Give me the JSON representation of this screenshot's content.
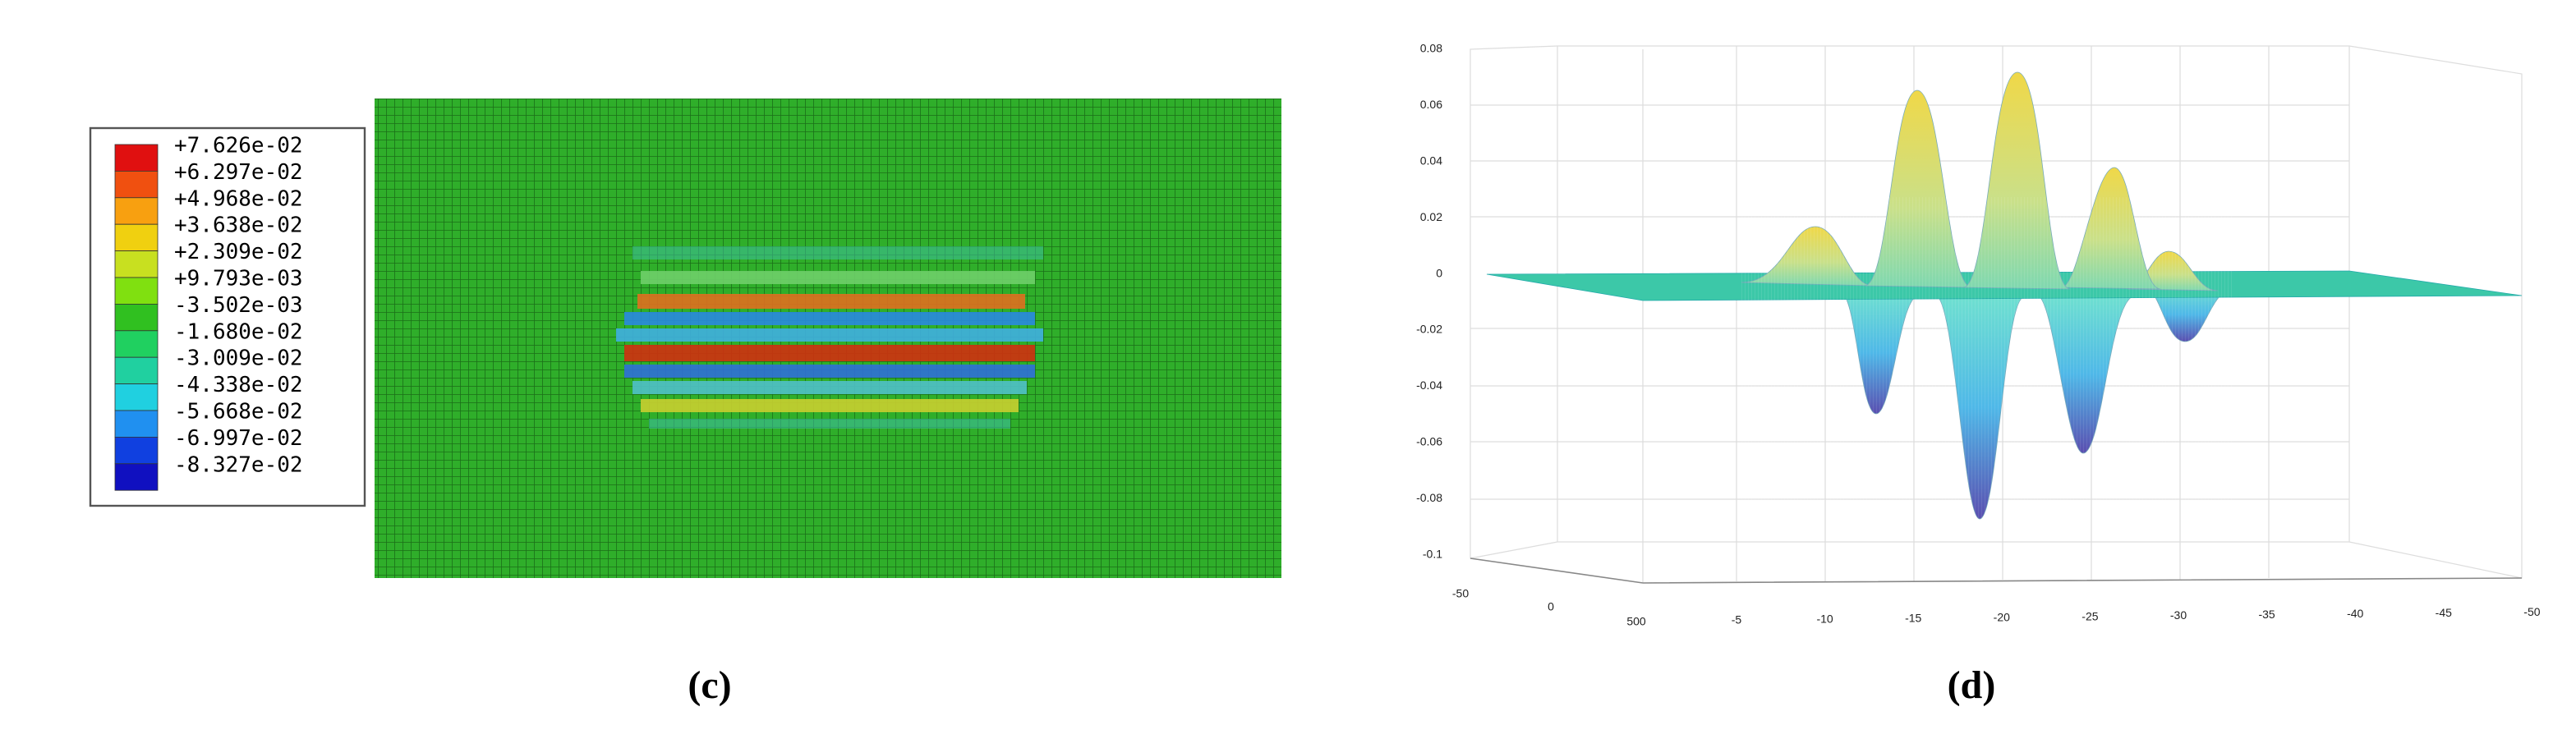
{
  "panels": [
    {
      "label": "(c)",
      "legend": {
        "labels": [
          "+7.626e-02",
          "+6.297e-02",
          "+4.968e-02",
          "+3.638e-02",
          "+2.309e-02",
          "+9.793e-03",
          "-3.502e-03",
          "-1.680e-02",
          "-3.009e-02",
          "-4.338e-02",
          "-5.668e-02",
          "-6.997e-02",
          "-8.327e-02"
        ]
      }
    },
    {
      "label": "(d)",
      "z_ticks": [
        "0.08",
        "0.06",
        "0.04",
        "0.02",
        "0",
        "-0.02",
        "-0.04",
        "-0.06",
        "-0.08",
        "-0.1"
      ],
      "y_ticks": [
        "-50",
        "0",
        "500"
      ],
      "x_ticks": [
        "-5",
        "-10",
        "-15",
        "-20",
        "-25",
        "-30",
        "-35",
        "-40",
        "-45",
        "-50"
      ]
    }
  ]
}
